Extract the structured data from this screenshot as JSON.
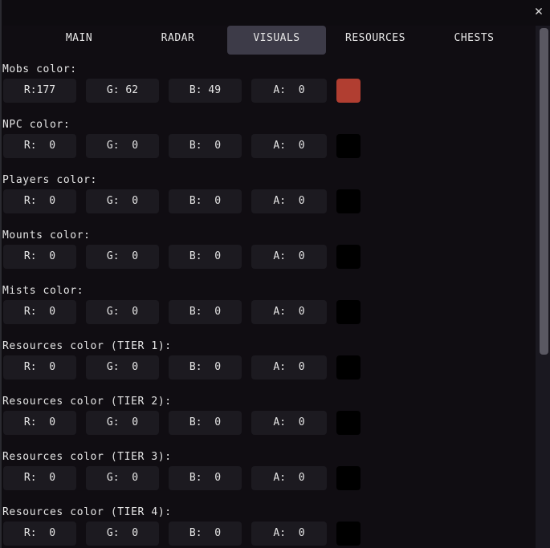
{
  "tabs": [
    {
      "label": "MAIN",
      "active": false
    },
    {
      "label": "RADAR",
      "active": false
    },
    {
      "label": "VISUALS",
      "active": true
    },
    {
      "label": "RESOURCES",
      "active": false
    },
    {
      "label": "CHESTS",
      "active": false
    }
  ],
  "close_icon": "close-icon",
  "sections": [
    {
      "label": "Mobs color:",
      "r": "R:177",
      "g": "G: 62",
      "b": "B: 49",
      "a": "A:  0",
      "swatch": "#b13e31"
    },
    {
      "label": "NPC color:",
      "r": "R:  0",
      "g": "G:  0",
      "b": "B:  0",
      "a": "A:  0",
      "swatch": "#000000"
    },
    {
      "label": "Players color:",
      "r": "R:  0",
      "g": "G:  0",
      "b": "B:  0",
      "a": "A:  0",
      "swatch": "#000000"
    },
    {
      "label": "Mounts color:",
      "r": "R:  0",
      "g": "G:  0",
      "b": "B:  0",
      "a": "A:  0",
      "swatch": "#000000"
    },
    {
      "label": "Mists color:",
      "r": "R:  0",
      "g": "G:  0",
      "b": "B:  0",
      "a": "A:  0",
      "swatch": "#000000"
    },
    {
      "label": "Resources color (TIER 1):",
      "r": "R:  0",
      "g": "G:  0",
      "b": "B:  0",
      "a": "A:  0",
      "swatch": "#000000"
    },
    {
      "label": "Resources color (TIER 2):",
      "r": "R:  0",
      "g": "G:  0",
      "b": "B:  0",
      "a": "A:  0",
      "swatch": "#000000"
    },
    {
      "label": "Resources color (TIER 3):",
      "r": "R:  0",
      "g": "G:  0",
      "b": "B:  0",
      "a": "A:  0",
      "swatch": "#000000"
    },
    {
      "label": "Resources color (TIER 4):",
      "r": "R:  0",
      "g": "G:  0",
      "b": "B:  0",
      "a": "A:  0",
      "swatch": "#000000"
    }
  ]
}
